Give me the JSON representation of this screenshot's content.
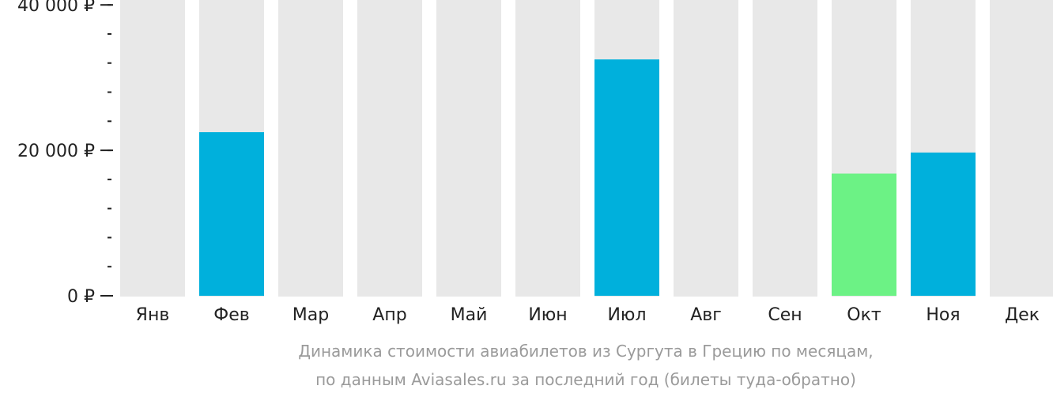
{
  "chart_data": {
    "type": "bar",
    "categories": [
      "Янв",
      "Фев",
      "Мар",
      "Апр",
      "Май",
      "Июн",
      "Июл",
      "Авг",
      "Сен",
      "Окт",
      "Ноя",
      "Дек"
    ],
    "values": [
      null,
      22500,
      null,
      null,
      null,
      null,
      32500,
      null,
      null,
      16800,
      19700,
      null
    ],
    "bar_colors": [
      "#00b0dc",
      "#00b0dc",
      "#00b0dc",
      "#00b0dc",
      "#00b0dc",
      "#00b0dc",
      "#00b0dc",
      "#00b0dc",
      "#00b0dc",
      "#6cf285",
      "#00b0dc",
      "#00b0dc"
    ],
    "background_bar_color": "#e8e8e8",
    "ylim": [
      0,
      41000
    ],
    "y_major_ticks": [
      {
        "value": 0,
        "label": "0 ₽"
      },
      {
        "value": 20000,
        "label": "20 000 ₽"
      },
      {
        "value": 40000,
        "label": "40 000 ₽"
      }
    ],
    "y_minor_step": 4000,
    "caption_line1": "Динамика стоимости авиабилетов из Сургута в Грецию по месяцам,",
    "caption_line2": "по данным Aviasales.ru за последний год (билеты туда-обратно)"
  }
}
